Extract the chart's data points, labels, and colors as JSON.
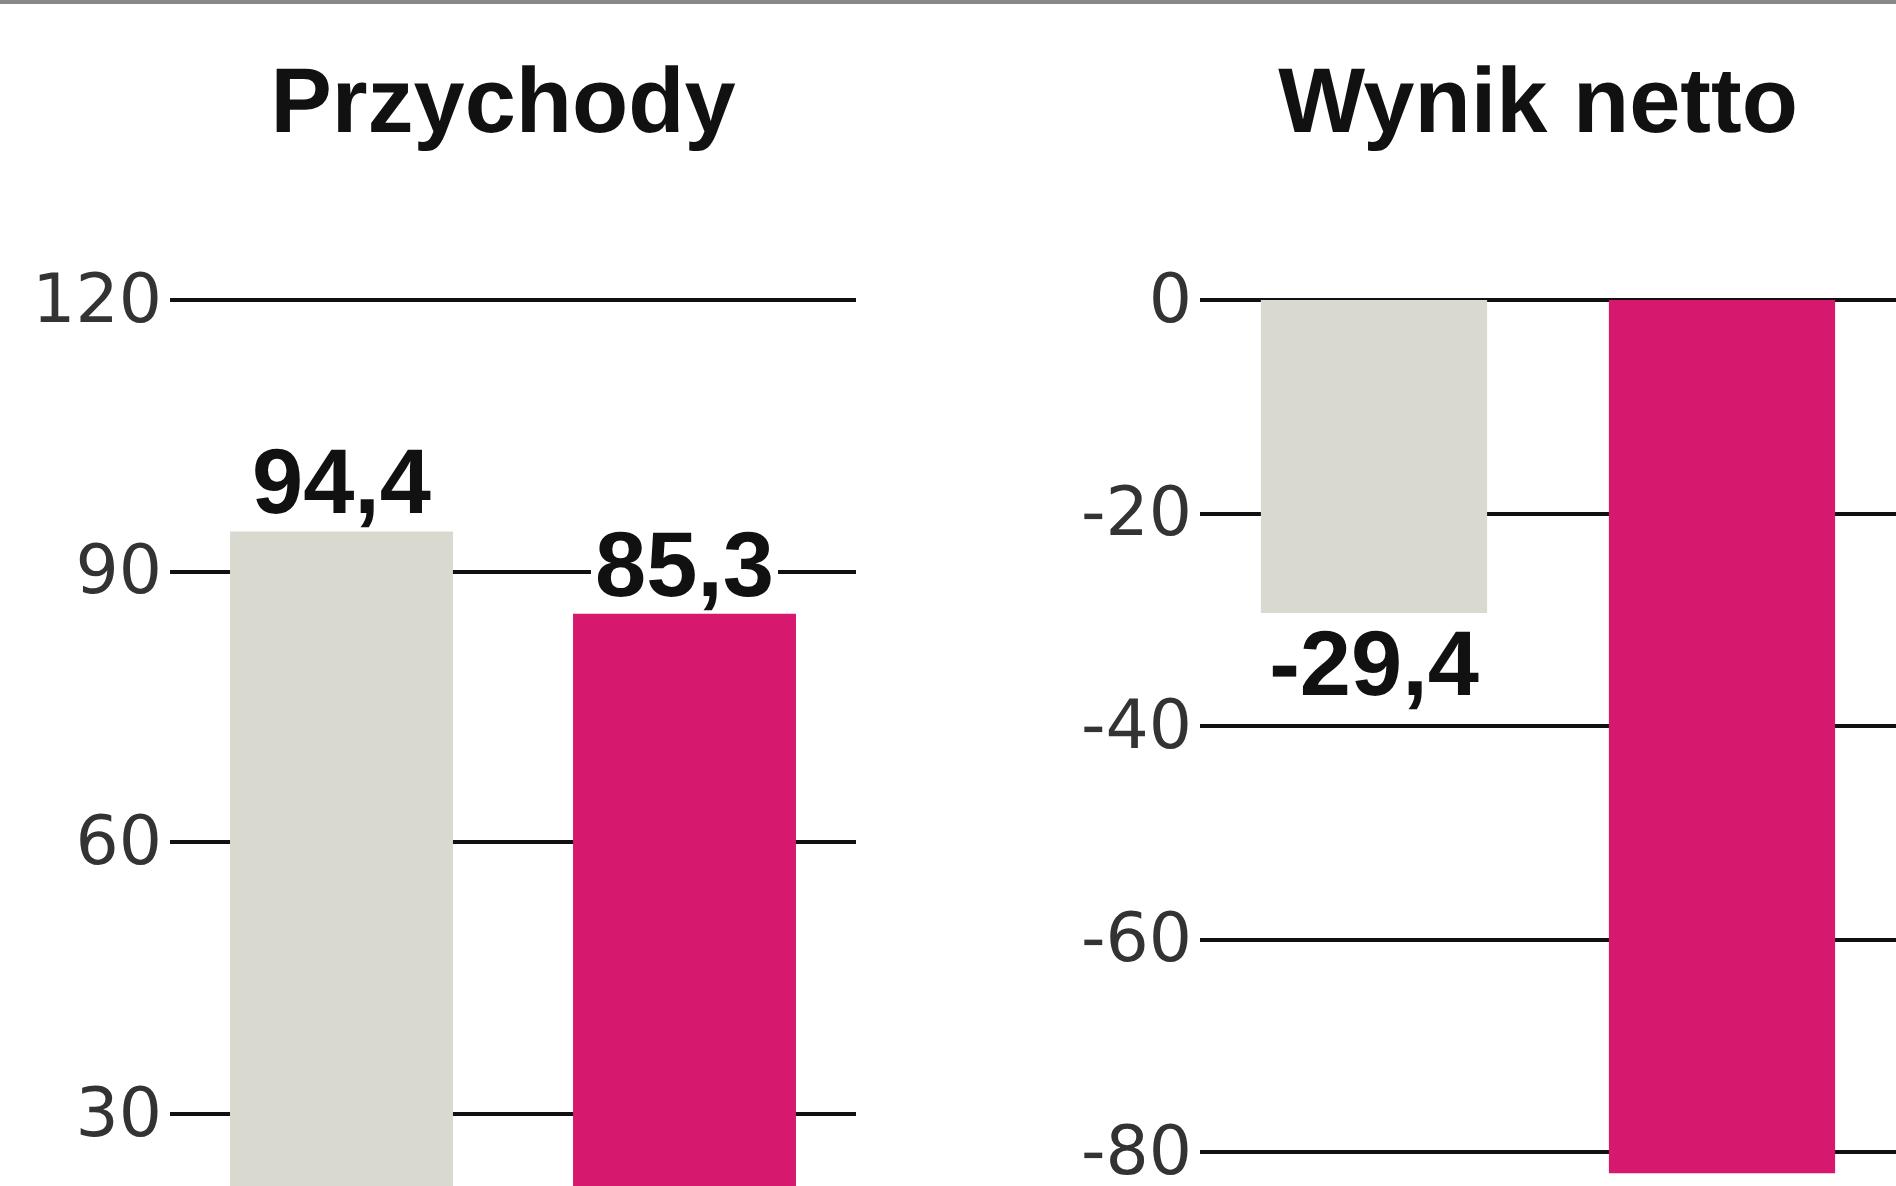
{
  "chart_data": [
    {
      "type": "bar",
      "title": "Przychody",
      "categories": [
        null,
        null
      ],
      "values": [
        94.4,
        85.3
      ],
      "colors": [
        "#d9d9cf",
        "#d6186f"
      ],
      "value_labels": [
        "94,4",
        "85,3"
      ],
      "ylim": [
        22,
        120
      ],
      "yticks": [
        30,
        60,
        90,
        120
      ],
      "grid": "y"
    },
    {
      "type": "bar",
      "title": "Wynik netto",
      "categories": [
        null,
        null
      ],
      "values": [
        -29.4,
        -82
      ],
      "colors": [
        "#d9d9cf",
        "#d6186f"
      ],
      "value_labels": [
        "-29,4",
        null
      ],
      "ylim": [
        -82,
        0
      ],
      "yticks": [
        -80,
        -60,
        -40,
        -20,
        0
      ],
      "grid": "y"
    }
  ]
}
